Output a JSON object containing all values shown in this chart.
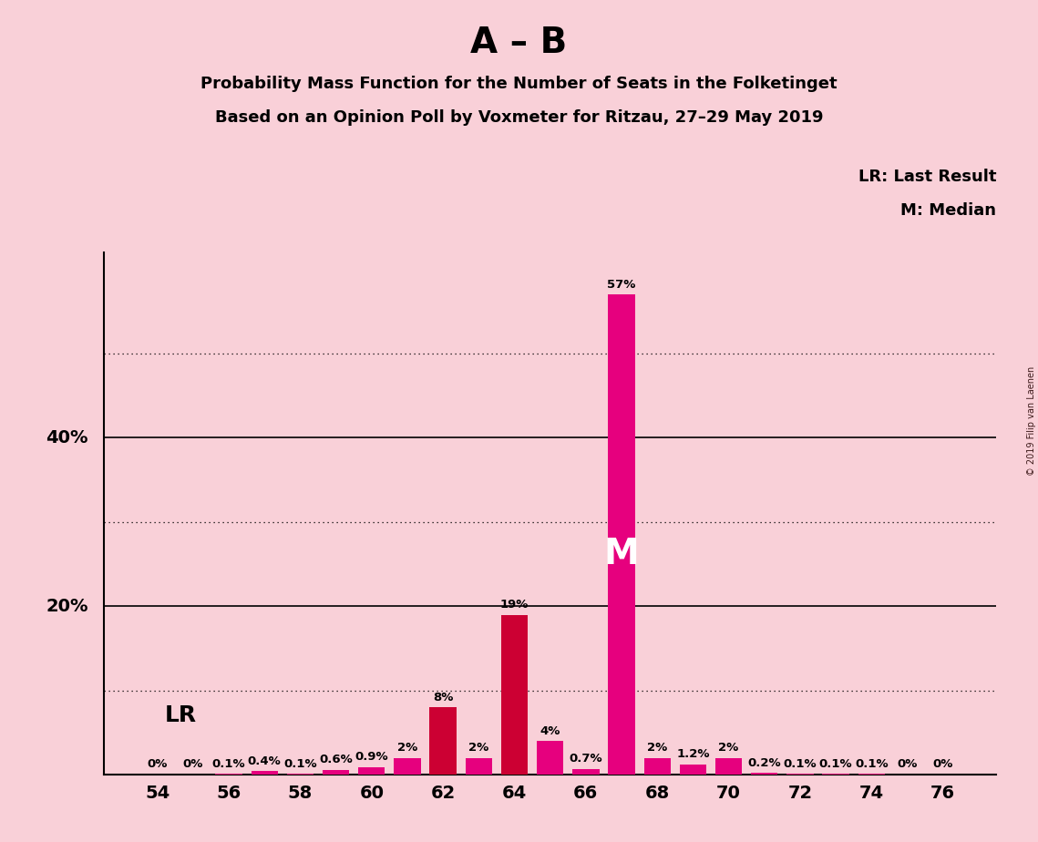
{
  "title_main": "A – B",
  "title_sub1": "Probability Mass Function for the Number of Seats in the Folketinget",
  "title_sub2": "Based on an Opinion Poll by Voxmeter for Ritzau, 27–29 May 2019",
  "copyright": "© 2019 Filip van Laenen",
  "legend_lr": "LR: Last Result",
  "legend_m": "M: Median",
  "lr_label": "LR",
  "median_label": "M",
  "background_color": "#f9d0d8",
  "bar_color_magenta": "#e6007e",
  "bar_color_red": "#cc0033",
  "seats": [
    54,
    55,
    56,
    57,
    58,
    59,
    60,
    61,
    62,
    63,
    64,
    65,
    66,
    67,
    68,
    69,
    70,
    71,
    72,
    73,
    74,
    75,
    76
  ],
  "values": [
    0.0,
    0.0,
    0.1,
    0.4,
    0.1,
    0.6,
    0.9,
    2.0,
    8.0,
    2.0,
    19.0,
    4.0,
    0.7,
    57.0,
    2.0,
    1.2,
    2.0,
    0.2,
    0.1,
    0.1,
    0.1,
    0.0,
    0.0
  ],
  "bar_colors": [
    "#e6007e",
    "#e6007e",
    "#e6007e",
    "#e6007e",
    "#e6007e",
    "#e6007e",
    "#e6007e",
    "#e6007e",
    "#cc0033",
    "#e6007e",
    "#cc0033",
    "#e6007e",
    "#e6007e",
    "#e6007e",
    "#e6007e",
    "#e6007e",
    "#e6007e",
    "#e6007e",
    "#e6007e",
    "#e6007e",
    "#e6007e",
    "#e6007e",
    "#e6007e"
  ],
  "lr_seat": 62,
  "median_seat": 67,
  "xtick_seats": [
    54,
    56,
    58,
    60,
    62,
    64,
    66,
    68,
    70,
    72,
    74,
    76
  ],
  "ysolid_lines": [
    20,
    40
  ],
  "ydotted_lines": [
    10,
    30,
    50
  ],
  "ylim": [
    0,
    62
  ],
  "bar_width": 0.75
}
